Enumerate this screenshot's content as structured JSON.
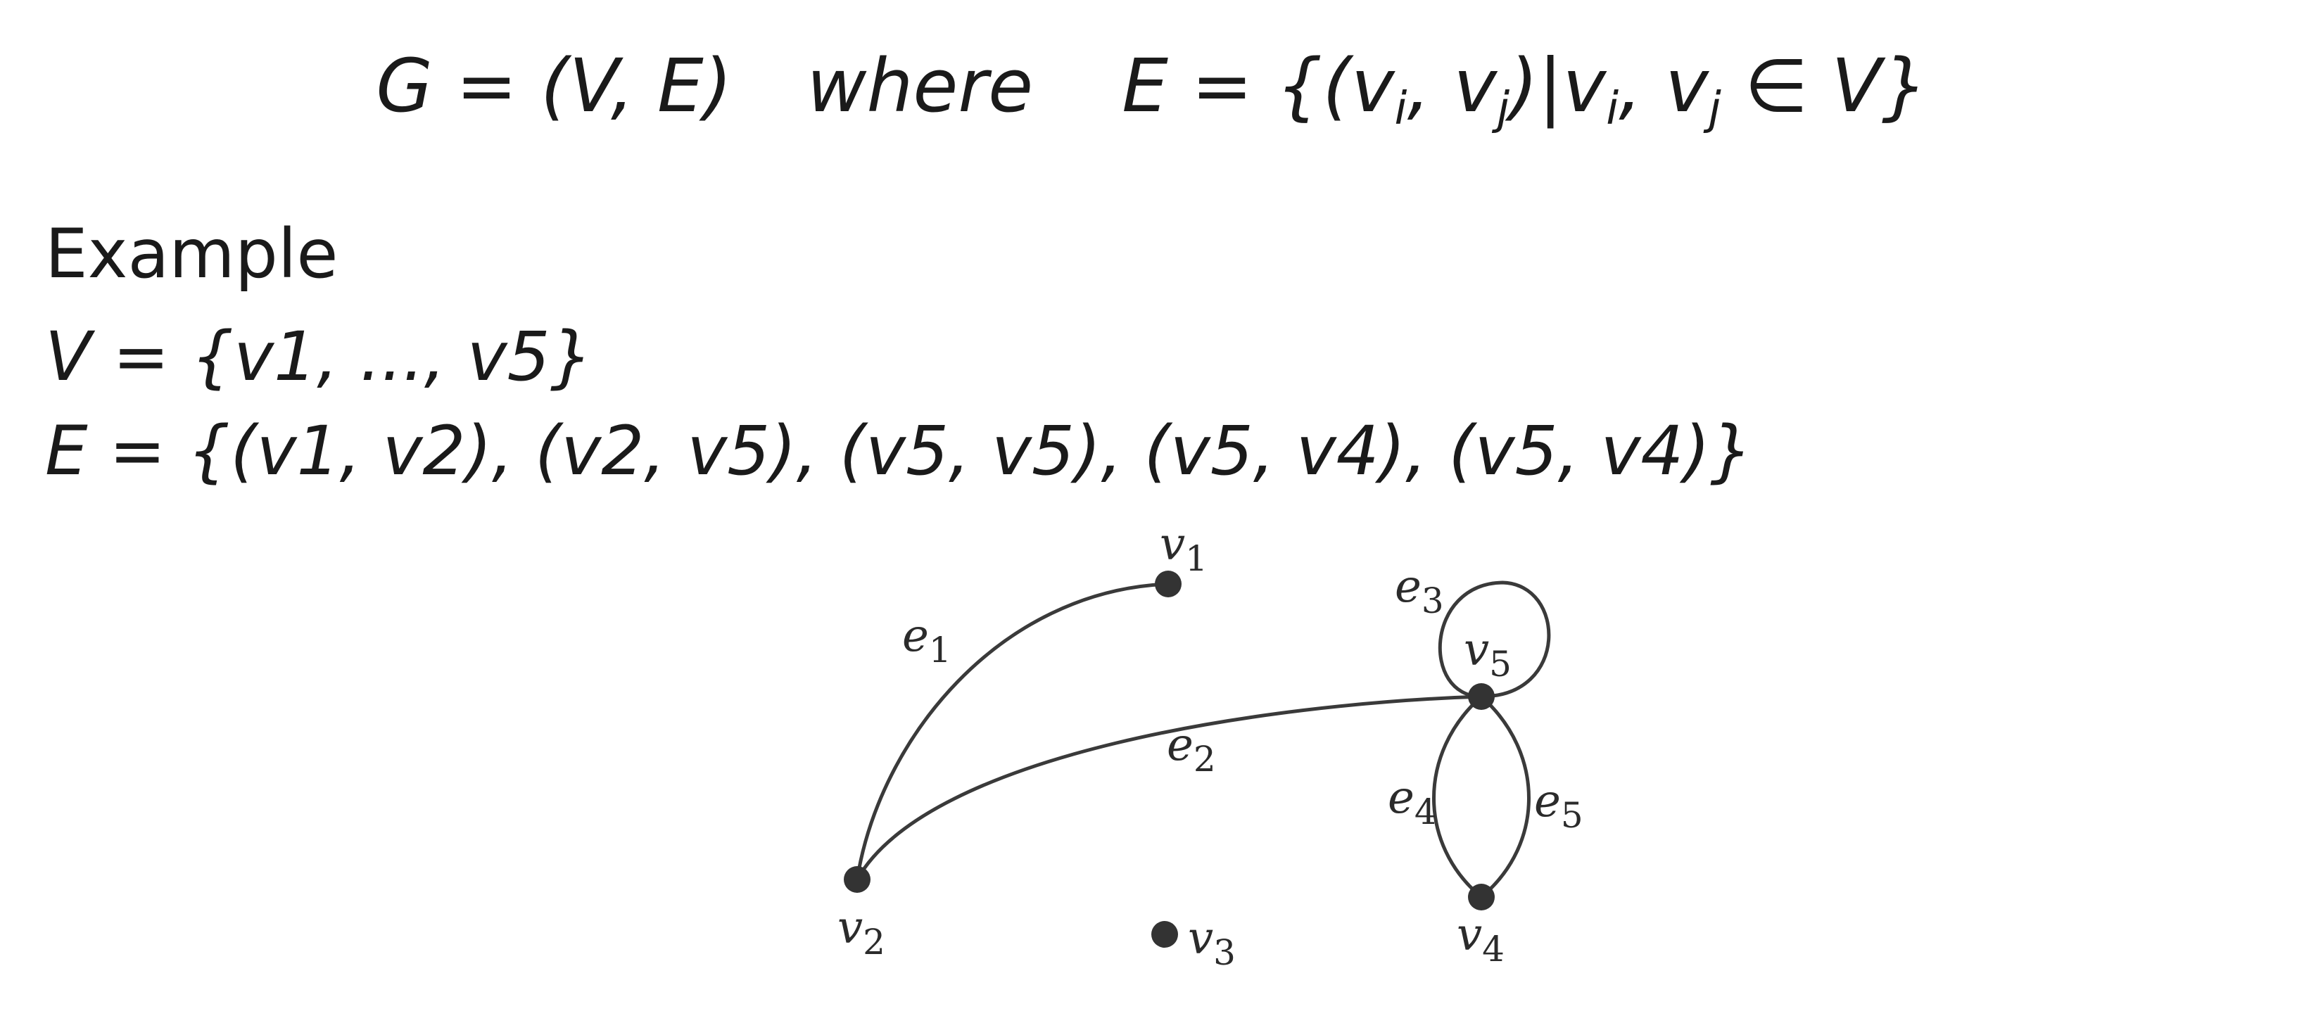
{
  "definition": {
    "graph": "G = (V, E)",
    "where": "where",
    "edges_def": "E = {(v",
    "i1": "i",
    "mid1": ", v",
    "j1": "j",
    "mid2": ")|v",
    "i2": "i",
    "mid3": ", v",
    "j2": "j",
    "tail": " ∈ V}"
  },
  "example": {
    "title": "Example",
    "vertex_set": "V = {v1, ..., v5}",
    "edge_set": "E = {(v1, v2), (v2, v5), (v5, v5), (v5, v4), (v5, v4)}"
  },
  "diagram": {
    "nodes": [
      {
        "id": "v1",
        "letter": "v",
        "index": "1"
      },
      {
        "id": "v2",
        "letter": "v",
        "index": "2"
      },
      {
        "id": "v3",
        "letter": "v",
        "index": "3"
      },
      {
        "id": "v4",
        "letter": "v",
        "index": "4"
      },
      {
        "id": "v5",
        "letter": "v",
        "index": "5"
      }
    ],
    "edges": [
      {
        "id": "e1",
        "letter": "e",
        "index": "1",
        "from": "v1",
        "to": "v2"
      },
      {
        "id": "e2",
        "letter": "e",
        "index": "2",
        "from": "v2",
        "to": "v5"
      },
      {
        "id": "e3",
        "letter": "e",
        "index": "3",
        "from": "v5",
        "to": "v5"
      },
      {
        "id": "e4",
        "letter": "e",
        "index": "4",
        "from": "v5",
        "to": "v4"
      },
      {
        "id": "e5",
        "letter": "e",
        "index": "5",
        "from": "v5",
        "to": "v4"
      }
    ],
    "colors": {
      "stroke": "#3a3a3a",
      "node_fill": "#333333"
    }
  }
}
